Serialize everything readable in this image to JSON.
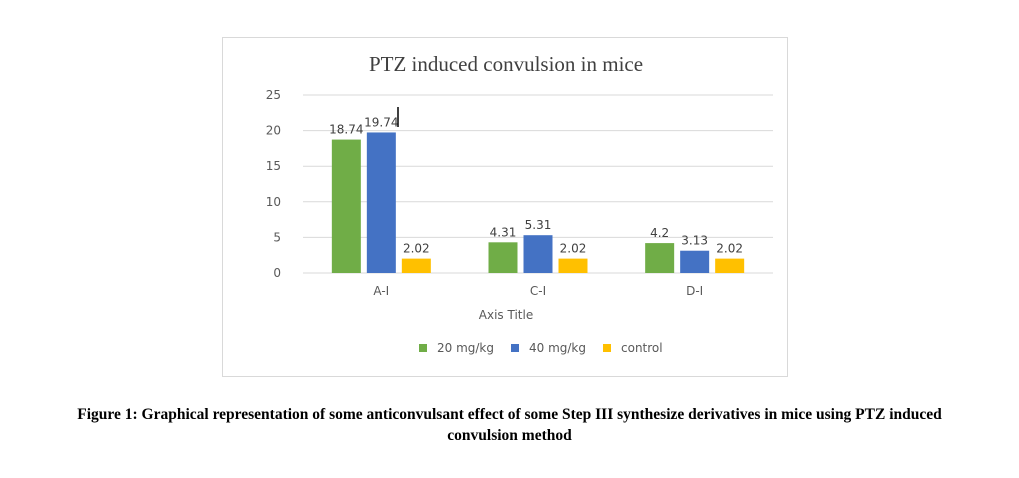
{
  "chart_data": {
    "type": "bar",
    "title": "PTZ induced convulsion in mice",
    "xlabel": "Axis Title",
    "ylabel": "",
    "categories": [
      "A-I",
      "C-I",
      "D-I"
    ],
    "series": [
      {
        "name": "20 mg/kg",
        "color": "#70ad47",
        "values": [
          18.74,
          4.31,
          4.2
        ],
        "labels": [
          "18.74",
          "4.31",
          "4.2"
        ]
      },
      {
        "name": "40 mg/kg",
        "color": "#4472c4",
        "values": [
          19.74,
          5.31,
          3.13
        ],
        "labels": [
          "19.74",
          "5.31",
          "3.13"
        ]
      },
      {
        "name": "control",
        "color": "#ffc000",
        "values": [
          2.02,
          2.02,
          2.02
        ],
        "labels": [
          "2.02",
          "2.02",
          "2.02"
        ]
      }
    ],
    "ylim": [
      0,
      25
    ],
    "yticks": [
      "0",
      "5",
      "10",
      "15",
      "20",
      "25"
    ],
    "grid": true,
    "legend": "bottom"
  },
  "caption": {
    "line1": "Figure 1: Graphical representation of some anticonvulsant effect of some Step III synthesize derivatives in mice using PTZ induced",
    "line2": "convulsion method"
  }
}
